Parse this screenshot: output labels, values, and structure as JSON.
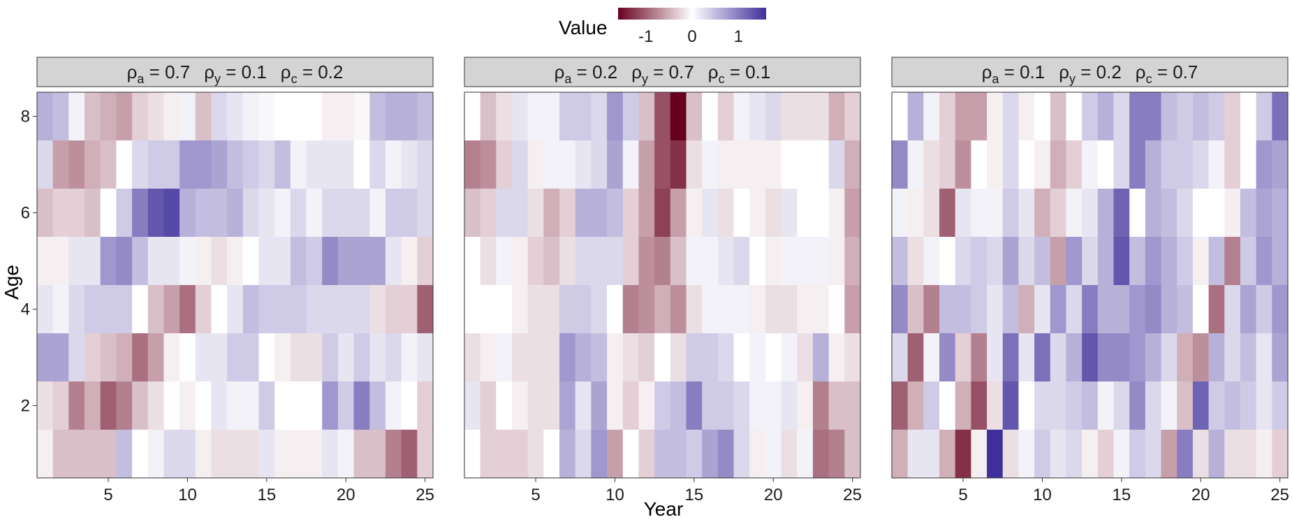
{
  "chart_data": {
    "type": "heatmap",
    "xlabel": "Year",
    "ylabel": "Age",
    "x_ticks": [
      5,
      10,
      15,
      20,
      25
    ],
    "y_ticks": [
      2,
      4,
      6,
      8
    ],
    "xlim": [
      0.5,
      25.5
    ],
    "ylim": [
      0.5,
      8.5
    ],
    "grid": false,
    "legend": {
      "title": "Value",
      "position": "top",
      "ticks": [
        "-1",
        "0",
        "1"
      ],
      "range": [
        -1.6,
        1.6
      ]
    },
    "colors": {
      "low": "#67001f",
      "mid": "#ffffff",
      "high": "#3f2f9a"
    },
    "panels": [
      {
        "strip": [
          {
            "sym": "ρ",
            "sub": "a",
            "val": " = 0.7"
          },
          {
            "sym": "ρ",
            "sub": "y",
            "val": " = 0.1"
          },
          {
            "sym": "ρ",
            "sub": "c",
            "val": " = 0.2"
          }
        ],
        "values": [
          [
            0.6,
            0.5,
            0.1,
            -0.4,
            -0.5,
            -0.6,
            -0.3,
            -0.2,
            -0.1,
            0.1,
            -0.4,
            0.3,
            0.2,
            0.1,
            0.05,
            0.0,
            0.0,
            0.0,
            -0.1,
            -0.1,
            -0.05,
            0.5,
            0.6,
            0.6,
            0.5
          ],
          [
            0.3,
            -0.6,
            -0.7,
            -0.5,
            -0.4,
            0.0,
            0.3,
            0.4,
            0.4,
            0.8,
            0.8,
            0.7,
            0.5,
            0.4,
            0.3,
            0.5,
            0.1,
            0.2,
            0.2,
            0.2,
            0.0,
            0.3,
            0.1,
            0.2,
            0.3
          ],
          [
            -0.4,
            -0.3,
            -0.3,
            -0.4,
            0.0,
            0.4,
            1.0,
            1.3,
            1.4,
            0.6,
            0.5,
            0.5,
            0.6,
            0.3,
            0.2,
            0.1,
            0.3,
            0.1,
            0.3,
            0.3,
            0.3,
            0.1,
            0.4,
            0.4,
            0.3
          ],
          [
            -0.1,
            -0.1,
            0.2,
            0.2,
            0.8,
            0.9,
            0.5,
            0.2,
            0.2,
            0.1,
            -0.1,
            -0.2,
            -0.1,
            0.0,
            0.2,
            0.2,
            0.5,
            0.4,
            0.9,
            0.7,
            0.7,
            0.7,
            0.2,
            -0.1,
            -0.3
          ],
          [
            0.2,
            0.1,
            0.3,
            0.4,
            0.4,
            0.4,
            0.0,
            -0.4,
            -0.6,
            -0.9,
            -0.3,
            0.0,
            0.2,
            0.5,
            0.4,
            0.4,
            0.4,
            0.3,
            0.3,
            0.3,
            0.3,
            -0.2,
            -0.3,
            -0.3,
            -1.0
          ],
          [
            0.7,
            0.7,
            0.3,
            -0.3,
            -0.4,
            -0.5,
            -0.9,
            -0.6,
            -0.1,
            0.0,
            0.2,
            0.2,
            0.4,
            0.4,
            0.0,
            -0.1,
            -0.2,
            -0.2,
            0.4,
            0.2,
            0.4,
            0.2,
            0.3,
            0.1,
            0.2
          ],
          [
            -0.2,
            -0.3,
            -0.8,
            -0.5,
            -1.0,
            -0.8,
            -0.4,
            -0.2,
            0.0,
            -0.1,
            0.0,
            0.2,
            0.1,
            0.1,
            0.4,
            0.0,
            0.0,
            0.0,
            0.8,
            0.4,
            1.0,
            0.5,
            0.1,
            0.0,
            -0.3
          ],
          [
            -0.1,
            -0.4,
            -0.4,
            -0.4,
            -0.4,
            0.5,
            0.0,
            0.1,
            0.3,
            0.3,
            -0.1,
            -0.2,
            -0.2,
            -0.2,
            0.2,
            -0.1,
            -0.1,
            -0.1,
            0.2,
            0.1,
            -0.4,
            -0.4,
            -0.8,
            -1.0,
            -0.3
          ]
        ]
      },
      {
        "strip": [
          {
            "sym": "ρ",
            "sub": "a",
            "val": " = 0.2"
          },
          {
            "sym": "ρ",
            "sub": "y",
            "val": " = 0.7"
          },
          {
            "sym": "ρ",
            "sub": "c",
            "val": " = 0.1"
          }
        ],
        "values": [
          [
            0.0,
            -0.4,
            -0.2,
            0.2,
            0.1,
            0.1,
            0.4,
            0.4,
            0.3,
            0.8,
            0.4,
            -0.4,
            -1.1,
            -1.6,
            -0.4,
            0.0,
            -0.3,
            0.1,
            0.2,
            0.3,
            -0.2,
            -0.2,
            -0.2,
            -0.5,
            -0.3
          ],
          [
            -0.8,
            -0.7,
            -0.3,
            0.3,
            -0.1,
            0.1,
            0.1,
            0.2,
            0.3,
            0.7,
            0.1,
            -0.6,
            -1.1,
            -1.3,
            -0.2,
            0.1,
            -0.1,
            -0.1,
            -0.1,
            -0.1,
            0.0,
            0.0,
            0.0,
            0.3,
            -0.5
          ],
          [
            -0.4,
            -0.3,
            0.3,
            0.3,
            -0.2,
            -0.5,
            -0.3,
            0.6,
            0.6,
            0.5,
            -0.3,
            -0.6,
            -1.2,
            -0.6,
            -0.1,
            0.2,
            -0.2,
            0.0,
            -0.1,
            -0.2,
            0.2,
            0.0,
            0.0,
            -0.1,
            -0.6
          ],
          [
            0.0,
            -0.2,
            0.1,
            -0.1,
            -0.3,
            -0.4,
            -0.2,
            0.3,
            0.3,
            0.3,
            -0.3,
            -0.7,
            -0.8,
            -0.4,
            0.1,
            0.1,
            0.2,
            0.3,
            0.0,
            -0.1,
            0.1,
            0.1,
            0.1,
            -0.1,
            -0.5
          ],
          [
            0.0,
            0.0,
            0.0,
            -0.1,
            -0.2,
            -0.2,
            0.4,
            0.4,
            0.3,
            0.0,
            -0.8,
            -0.7,
            -0.5,
            -0.7,
            -0.2,
            0.1,
            0.1,
            0.1,
            -0.1,
            -0.2,
            -0.2,
            -0.1,
            -0.1,
            0.0,
            -0.6
          ],
          [
            -0.2,
            -0.1,
            0.1,
            -0.2,
            -0.2,
            -0.2,
            0.8,
            0.6,
            0.5,
            -0.1,
            -0.2,
            -0.3,
            0.0,
            -0.2,
            0.4,
            0.4,
            0.3,
            0.0,
            0.1,
            0.0,
            0.1,
            -0.2,
            0.6,
            -0.1,
            -0.2
          ],
          [
            0.2,
            -0.3,
            0.0,
            -0.1,
            -0.2,
            -0.2,
            0.7,
            0.2,
            0.7,
            -0.1,
            -0.3,
            -0.1,
            0.4,
            0.5,
            1.0,
            0.4,
            0.4,
            0.3,
            0.1,
            0.1,
            0.2,
            -0.1,
            -0.8,
            -0.4,
            -0.4
          ],
          [
            0.0,
            -0.3,
            -0.3,
            -0.3,
            -0.2,
            0.0,
            0.6,
            0.3,
            0.8,
            -0.6,
            0.0,
            -0.3,
            0.5,
            0.5,
            0.4,
            0.7,
            0.9,
            0.3,
            -0.1,
            0.1,
            -0.2,
            0.1,
            -0.9,
            -0.8,
            -0.4
          ]
        ]
      },
      {
        "strip": [
          {
            "sym": "ρ",
            "sub": "a",
            "val": " = 0.1"
          },
          {
            "sym": "ρ",
            "sub": "y",
            "val": " = 0.2"
          },
          {
            "sym": "ρ",
            "sub": "c",
            "val": " = 0.7"
          }
        ],
        "values": [
          [
            0.0,
            0.6,
            0.1,
            -0.3,
            -0.6,
            -0.6,
            -0.1,
            0.3,
            -0.1,
            0.0,
            -0.4,
            0.0,
            0.4,
            0.6,
            0.3,
            1.0,
            1.0,
            0.5,
            0.4,
            0.5,
            0.4,
            -0.3,
            0.0,
            0.4,
            1.1
          ],
          [
            0.9,
            0.1,
            -0.2,
            -0.3,
            -0.7,
            0.0,
            -0.1,
            0.3,
            0.0,
            -0.1,
            -0.5,
            -0.3,
            0.1,
            0.0,
            0.3,
            1.0,
            0.6,
            0.4,
            0.4,
            0.3,
            0.1,
            -0.3,
            0.0,
            0.8,
            0.7
          ],
          [
            0.1,
            -0.1,
            -0.2,
            -1.0,
            0.2,
            0.1,
            0.1,
            0.4,
            0.2,
            -0.5,
            -0.3,
            0.1,
            0.2,
            0.6,
            1.2,
            0.0,
            0.6,
            0.5,
            0.3,
            0.0,
            0.0,
            -0.1,
            0.5,
            0.7,
            0.6
          ],
          [
            0.5,
            -0.2,
            0.1,
            0.0,
            0.3,
            0.4,
            0.3,
            0.7,
            0.3,
            0.5,
            -0.6,
            0.8,
            0.3,
            0.6,
            1.3,
            0.5,
            0.8,
            0.6,
            0.4,
            -0.1,
            0.5,
            -0.8,
            0.4,
            0.8,
            0.6
          ],
          [
            0.9,
            -0.4,
            -0.8,
            0.5,
            0.5,
            0.4,
            0.2,
            0.5,
            -0.5,
            0.2,
            0.8,
            0.3,
            1.0,
            0.6,
            0.6,
            0.8,
            0.9,
            0.6,
            0.5,
            0.0,
            -0.9,
            0.3,
            0.7,
            0.4,
            0.8
          ],
          [
            0.3,
            -1.0,
            0.1,
            0.9,
            -0.3,
            -0.8,
            0.2,
            1.1,
            0.2,
            1.1,
            0.3,
            0.6,
            1.3,
            0.9,
            0.9,
            0.8,
            0.6,
            0.3,
            -0.5,
            -0.7,
            0.6,
            0.3,
            0.5,
            0.2,
            0.7
          ],
          [
            -1.0,
            -0.5,
            0.4,
            0.0,
            -0.5,
            -1.1,
            -0.2,
            1.3,
            0.0,
            0.3,
            0.3,
            0.4,
            0.5,
            0.1,
            0.3,
            0.9,
            0.3,
            0.1,
            -0.4,
            1.2,
            0.4,
            0.5,
            0.4,
            0.2,
            0.4
          ],
          [
            -0.5,
            0.2,
            0.2,
            -0.5,
            -1.3,
            -0.1,
            1.7,
            -0.2,
            0.1,
            0.4,
            0.2,
            0.3,
            -0.1,
            -0.3,
            0.1,
            0.4,
            0.3,
            -0.6,
            1.0,
            -0.2,
            0.6,
            -0.2,
            -0.2,
            -0.1,
            -0.3
          ]
        ]
      }
    ]
  }
}
